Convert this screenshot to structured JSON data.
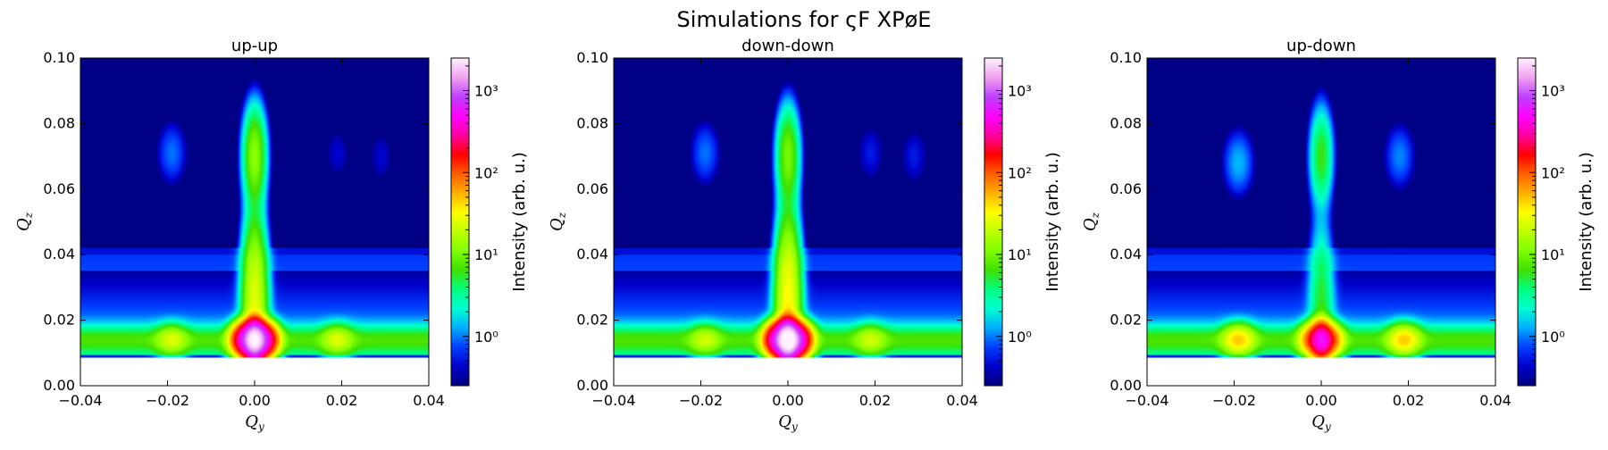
{
  "figure": {
    "title": "Simulations for ςF XPøE"
  },
  "colormap": {
    "name": "gist_ncar",
    "stops": [
      "#000080",
      "#0000cc",
      "#0040ff",
      "#00b0ff",
      "#00ffd0",
      "#00ff80",
      "#40e000",
      "#80ff00",
      "#c0ff00",
      "#ffff00",
      "#ffb000",
      "#ff6000",
      "#ff0000",
      "#ff00a0",
      "#ff00ff",
      "#c040ff",
      "#f0a0f0",
      "#fff0ff"
    ],
    "min": 0.25,
    "max": 2500
  },
  "chart_data": [
    {
      "type": "heatmap",
      "title": "up-up",
      "xlabel": "Q_y",
      "ylabel": "Q_z",
      "xlim": [
        -0.04,
        0.04
      ],
      "ylim": [
        0.0,
        0.1
      ],
      "xticks": [
        "−0.04",
        "−0.02",
        "0.00",
        "0.02",
        "0.04"
      ],
      "yticks": [
        "0.00",
        "0.02",
        "0.04",
        "0.06",
        "0.08",
        "0.10"
      ],
      "colorbar": {
        "label": "Intensity (arb. u.)",
        "scale": "log",
        "ticks": [
          "10⁰",
          "10¹",
          "10²",
          "10³"
        ],
        "tick_values": [
          1,
          10,
          100,
          1000
        ]
      },
      "specular_intensity": 1500,
      "features": [
        {
          "qy": 0.0,
          "qz": 0.07,
          "intensity": 12
        },
        {
          "qy": -0.019,
          "qz": 0.071,
          "intensity": 0.9
        },
        {
          "qy": 0.019,
          "qz": 0.071,
          "intensity": 0.4
        },
        {
          "qy": 0.029,
          "qz": 0.07,
          "intensity": 0.4
        },
        {
          "qy": 0.0,
          "qz": 0.014,
          "intensity": 1500
        },
        {
          "qy": -0.019,
          "qz": 0.014,
          "intensity": 18
        },
        {
          "qy": 0.019,
          "qz": 0.014,
          "intensity": 18
        }
      ]
    },
    {
      "type": "heatmap",
      "title": "down-down",
      "xlabel": "Q_y",
      "ylabel": "Q_z",
      "xlim": [
        -0.04,
        0.04
      ],
      "ylim": [
        0.0,
        0.1
      ],
      "xticks": [
        "−0.04",
        "−0.02",
        "0.00",
        "0.02",
        "0.04"
      ],
      "yticks": [
        "0.00",
        "0.02",
        "0.04",
        "0.06",
        "0.08",
        "0.10"
      ],
      "colorbar": {
        "label": "Intensity (arb. u.)",
        "scale": "log",
        "ticks": [
          "10⁰",
          "10¹",
          "10²",
          "10³"
        ],
        "tick_values": [
          1,
          10,
          100,
          1000
        ]
      },
      "specular_intensity": 2000,
      "features": [
        {
          "qy": 0.0,
          "qz": 0.07,
          "intensity": 10
        },
        {
          "qy": -0.019,
          "qz": 0.071,
          "intensity": 0.9
        },
        {
          "qy": 0.019,
          "qz": 0.071,
          "intensity": 0.5
        },
        {
          "qy": 0.029,
          "qz": 0.07,
          "intensity": 0.5
        },
        {
          "qy": 0.0,
          "qz": 0.014,
          "intensity": 2000
        },
        {
          "qy": -0.019,
          "qz": 0.014,
          "intensity": 15
        },
        {
          "qy": 0.019,
          "qz": 0.014,
          "intensity": 15
        }
      ]
    },
    {
      "type": "heatmap",
      "title": "up-down",
      "xlabel": "Q_y",
      "ylabel": "Q_z",
      "xlim": [
        -0.04,
        0.04
      ],
      "ylim": [
        0.0,
        0.1
      ],
      "xticks": [
        "−0.04",
        "−0.02",
        "0.00",
        "0.02",
        "0.04"
      ],
      "yticks": [
        "0.00",
        "0.02",
        "0.04",
        "0.06",
        "0.08",
        "0.10"
      ],
      "colorbar": {
        "label": "Intensity (arb. u.)",
        "scale": "log",
        "ticks": [
          "10⁰",
          "10¹",
          "10²",
          "10³"
        ],
        "tick_values": [
          1,
          10,
          100,
          1000
        ]
      },
      "specular_intensity": 300,
      "features": [
        {
          "qy": 0.0,
          "qz": 0.07,
          "intensity": 6
        },
        {
          "qy": -0.019,
          "qz": 0.068,
          "intensity": 1.3
        },
        {
          "qy": 0.018,
          "qz": 0.07,
          "intensity": 1.0
        },
        {
          "qy": 0.0,
          "qz": 0.014,
          "intensity": 300
        },
        {
          "qy": -0.019,
          "qz": 0.014,
          "intensity": 40
        },
        {
          "qy": 0.019,
          "qz": 0.014,
          "intensity": 40
        }
      ]
    }
  ]
}
